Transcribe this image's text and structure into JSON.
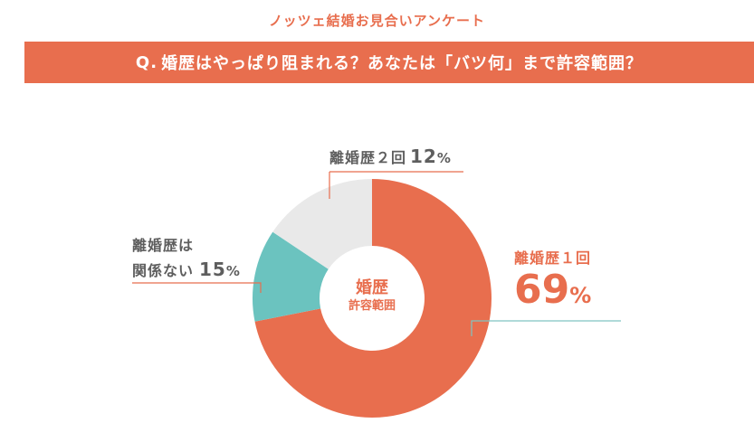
{
  "header": {
    "survey_title": "ノッツェ結婚お見合いアンケート",
    "question_prefix": "Q.",
    "question_text": "婚歴はやっぱり阻まれる？あなたは「バツ何」まで許容範囲？"
  },
  "chart_data": {
    "type": "pie",
    "style": "donut",
    "center_label": [
      "婚歴",
      "許容範囲"
    ],
    "categories": [
      "離婚歴１回",
      "離婚歴２回",
      "離婚歴は関係ない"
    ],
    "values": [
      69,
      12,
      15
    ],
    "unit": "%",
    "colors": [
      "#e86e4e",
      "#6bc3bf",
      "#e9e9e9"
    ],
    "legend": "none",
    "labels": [
      {
        "name": "離婚歴１回",
        "name_lines": [
          "離婚歴１回"
        ],
        "value": "69",
        "unit": "%",
        "color": "#e86e4e"
      },
      {
        "name": "離婚歴２回",
        "name_lines": [
          "離婚歴２回"
        ],
        "value": "12",
        "unit": "%",
        "color": "#6bc3bf"
      },
      {
        "name": "離婚歴は関係ない",
        "name_lines": [
          "離婚歴は",
          "関係ない"
        ],
        "value": "15",
        "unit": "%",
        "color": "#e9e9e9"
      }
    ]
  }
}
